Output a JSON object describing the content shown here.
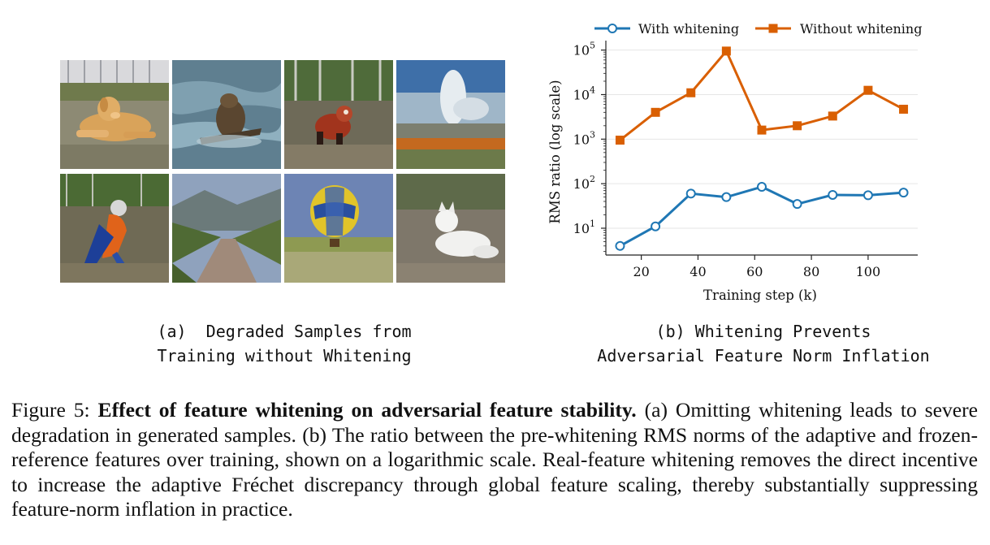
{
  "panel_a": {
    "caption_line1": "(a)  Degraded Samples from",
    "caption_line2": "Training without Whitening",
    "samples": [
      {
        "subject": "dog"
      },
      {
        "subject": "otter"
      },
      {
        "subject": "red panda"
      },
      {
        "subject": "geyser"
      },
      {
        "subject": "parrot"
      },
      {
        "subject": "valley"
      },
      {
        "subject": "hot air balloon"
      },
      {
        "subject": "arctic fox"
      }
    ]
  },
  "panel_b": {
    "caption_line1": "(b) Whitening Prevents",
    "caption_line2": "Adversarial Feature Norm Inflation"
  },
  "chart_data": {
    "type": "line",
    "xlabel": "Training step (k)",
    "ylabel": "RMS ratio (log scale)",
    "y_scale": "log",
    "xlim": [
      7.5,
      117.5
    ],
    "ylim": [
      2.5,
      150000
    ],
    "x_ticks": [
      20,
      40,
      60,
      80,
      100
    ],
    "y_ticks": [
      10,
      100,
      1000,
      10000,
      100000
    ],
    "y_tick_labels": [
      [
        "10",
        "1"
      ],
      [
        "10",
        "2"
      ],
      [
        "10",
        "3"
      ],
      [
        "10",
        "4"
      ],
      [
        "10",
        "5"
      ]
    ],
    "grid": true,
    "legend_position": "top",
    "x": [
      12.5,
      25,
      37.5,
      50,
      62.5,
      75,
      87.5,
      100,
      112.5
    ],
    "series": [
      {
        "name": "With whitening",
        "color": "#1f77b4",
        "marker": "open-circle",
        "values": [
          4,
          11,
          60,
          50,
          85,
          35,
          56,
          55,
          63
        ]
      },
      {
        "name": "Without whitening",
        "color": "#d95f02",
        "marker": "square",
        "values": [
          950,
          4000,
          11000,
          95000,
          1600,
          2000,
          3300,
          12500,
          4700
        ]
      }
    ]
  },
  "figure_caption": {
    "label": "Figure 5:",
    "title": "Effect of feature whitening on adversarial feature stability.",
    "body": "(a) Omitting whitening leads to severe degradation in generated samples.  (b) The ratio between the pre-whitening RMS norms of the adaptive and frozen-reference features over training, shown on a logarithmic scale. Real-feature whitening removes the direct incentive to increase the adaptive Fréchet discrepancy through global feature scaling, thereby substantially suppressing feature-norm inflation in practice."
  }
}
